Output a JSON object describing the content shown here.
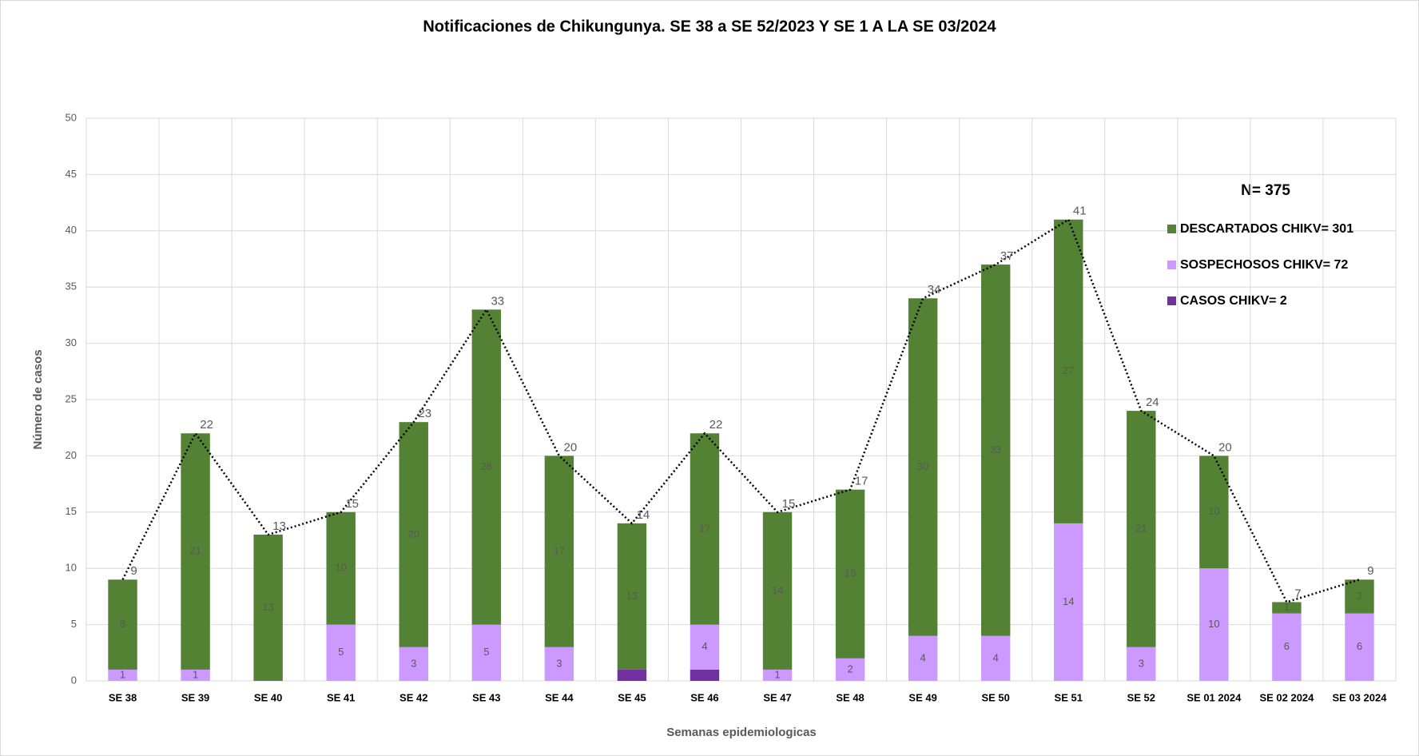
{
  "chart_data": {
    "type": "stacked-bar-line",
    "title": "Notificaciones de Chikungunya. SE  38 a SE 52/2023 Y  SE 1 A LA  SE 03/2024",
    "y_label": "Número de casos",
    "x_label": "Semanas epidemiologicas",
    "annotation": "N= 375",
    "categories": [
      "SE 38",
      "SE 39",
      "SE 40",
      "SE 41",
      "SE 42",
      "SE 43",
      "SE 44",
      "SE 45",
      "SE 46",
      "SE 47",
      "SE 48",
      "SE 49",
      "SE 50",
      "SE 51",
      "SE 52",
      "SE 01 2024",
      "SE 02 2024",
      "SE 03 2024"
    ],
    "series": [
      {
        "name": "CASOS CHIKV= 2",
        "color": "#7030a0",
        "values": [
          0,
          0,
          0,
          0,
          0,
          0,
          0,
          1,
          1,
          0,
          0,
          0,
          0,
          0,
          0,
          0,
          0,
          0
        ]
      },
      {
        "name": "SOSPECHOSOS CHIKV= 72",
        "color": "#cc99ff",
        "values": [
          1,
          1,
          0,
          5,
          3,
          5,
          3,
          0,
          4,
          1,
          2,
          4,
          4,
          14,
          3,
          10,
          6,
          6
        ]
      },
      {
        "name": "DESCARTADOS CHIKV= 301",
        "color": "#548235",
        "values": [
          8,
          21,
          13,
          10,
          20,
          28,
          17,
          13,
          17,
          14,
          15,
          30,
          33,
          27,
          21,
          10,
          1,
          3
        ]
      }
    ],
    "total_line": {
      "color": "#000000",
      "values": [
        9,
        22,
        13,
        15,
        23,
        33,
        20,
        14,
        22,
        15,
        17,
        34,
        37,
        41,
        24,
        20,
        7,
        9
      ]
    },
    "ylim": [
      0,
      50
    ],
    "yticks": [
      0,
      5,
      10,
      15,
      20,
      25,
      30,
      35,
      40,
      45,
      50
    ],
    "grid": true
  }
}
